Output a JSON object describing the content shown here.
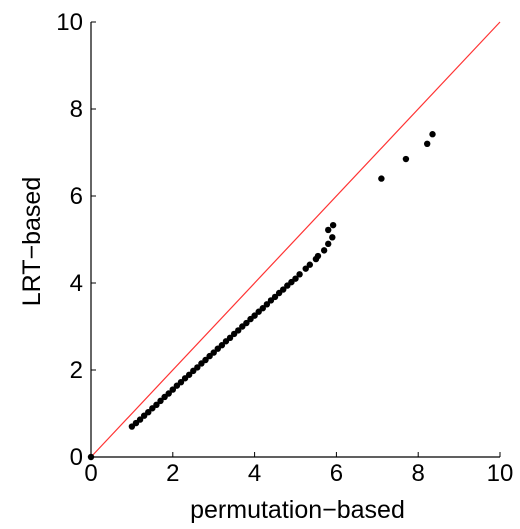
{
  "chart_data": {
    "type": "scatter",
    "title": "",
    "xlabel": "permutation−based",
    "ylabel": "LRT−based",
    "xlim": [
      0,
      10
    ],
    "ylim": [
      0,
      10
    ],
    "x_ticks": [
      "0",
      "2",
      "4",
      "6",
      "8",
      "10"
    ],
    "y_ticks": [
      "0",
      "2",
      "4",
      "6",
      "8",
      "10"
    ],
    "grid": false,
    "box": "left-bottom axes only",
    "reference_line": {
      "label": "y = x",
      "x": [
        0,
        10
      ],
      "y": [
        0,
        10
      ],
      "color": "#ff3333"
    },
    "series": [
      {
        "color": "#000000",
        "marker": "filled-circle",
        "trend": "dense band of points from about (1.0, 0.7) to (5.0, 4.1), roughly y = 0.85x - 0.15",
        "points": [
          [
            0.0,
            0.0
          ],
          [
            1.0,
            0.7
          ],
          [
            1.1,
            0.78
          ],
          [
            1.2,
            0.86
          ],
          [
            1.3,
            0.95
          ],
          [
            1.4,
            1.03
          ],
          [
            1.5,
            1.12
          ],
          [
            1.6,
            1.2
          ],
          [
            1.7,
            1.29
          ],
          [
            1.8,
            1.38
          ],
          [
            1.9,
            1.46
          ],
          [
            2.0,
            1.55
          ],
          [
            2.1,
            1.64
          ],
          [
            2.2,
            1.72
          ],
          [
            2.3,
            1.81
          ],
          [
            2.4,
            1.89
          ],
          [
            2.5,
            1.98
          ],
          [
            2.6,
            2.06
          ],
          [
            2.7,
            2.15
          ],
          [
            2.8,
            2.23
          ],
          [
            2.9,
            2.32
          ],
          [
            3.0,
            2.4
          ],
          [
            3.1,
            2.49
          ],
          [
            3.2,
            2.57
          ],
          [
            3.3,
            2.66
          ],
          [
            3.4,
            2.74
          ],
          [
            3.5,
            2.83
          ],
          [
            3.6,
            2.91
          ],
          [
            3.7,
            3.0
          ],
          [
            3.8,
            3.08
          ],
          [
            3.9,
            3.17
          ],
          [
            4.0,
            3.25
          ],
          [
            4.1,
            3.34
          ],
          [
            4.2,
            3.42
          ],
          [
            4.3,
            3.51
          ],
          [
            4.4,
            3.6
          ],
          [
            4.5,
            3.68
          ],
          [
            4.6,
            3.77
          ],
          [
            4.7,
            3.85
          ],
          [
            4.8,
            3.94
          ],
          [
            4.9,
            4.02
          ],
          [
            5.0,
            4.1
          ],
          [
            5.1,
            4.2
          ],
          [
            5.25,
            4.33
          ],
          [
            5.35,
            4.42
          ],
          [
            5.5,
            4.55
          ],
          [
            5.55,
            4.62
          ],
          [
            5.7,
            4.75
          ],
          [
            5.8,
            4.9
          ],
          [
            5.9,
            5.05
          ],
          [
            5.8,
            5.22
          ],
          [
            5.92,
            5.33
          ],
          [
            7.1,
            6.4
          ],
          [
            7.7,
            6.85
          ],
          [
            8.22,
            7.2
          ],
          [
            8.35,
            7.42
          ]
        ]
      }
    ]
  }
}
